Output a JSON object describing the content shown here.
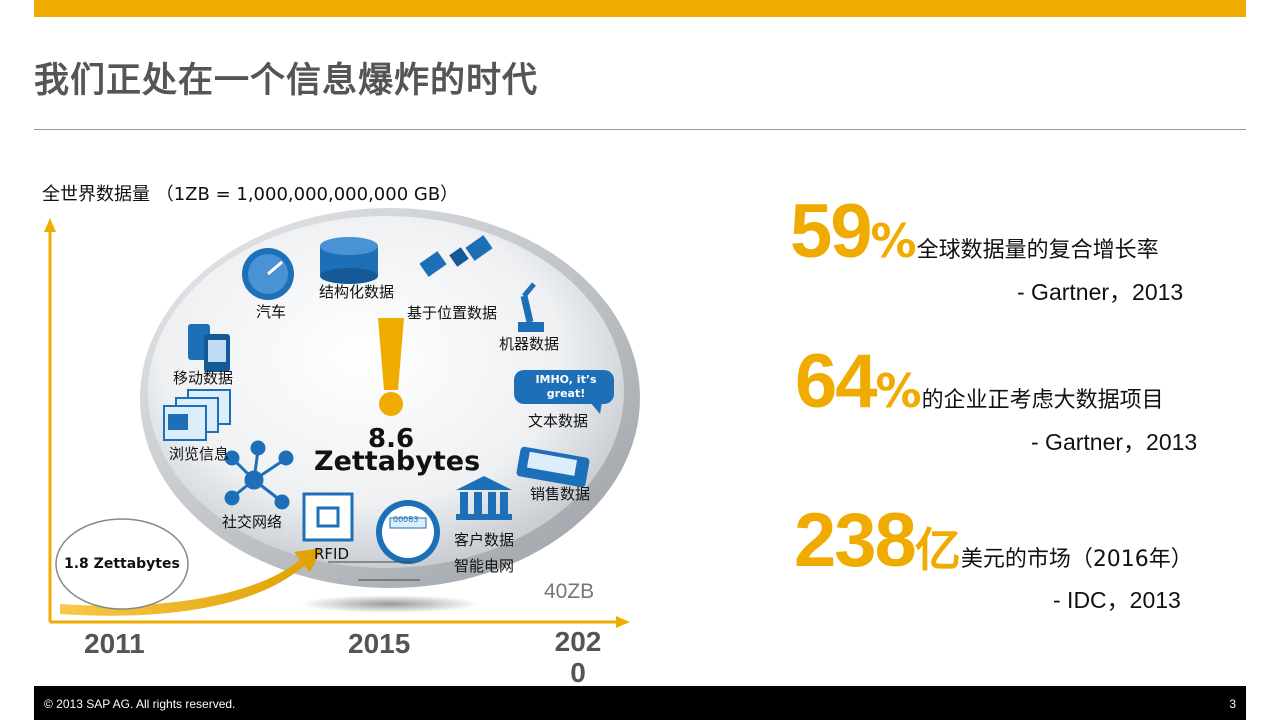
{
  "title": "我们正处在一个信息爆炸的时代",
  "chart": {
    "ylabel": "全世界数据量 （1ZB = 1,000,000,000,000 GB）",
    "years": [
      "2011",
      "2015",
      "202\n0"
    ],
    "bubble_2011": "1.8 Zettabytes",
    "center_value": "8.6",
    "center_unit": "Zettabytes",
    "value_2020": "40ZB",
    "speech": "IMHO, it’s great!",
    "sources": {
      "car": "汽车",
      "structured": "结构化数据",
      "location": "基于位置数据",
      "machine": "机器数据",
      "mobile": "移动数据",
      "text": "文本数据",
      "browsing": "浏览信息",
      "sales": "销售数据",
      "social": "社交网络",
      "customer": "客户数据",
      "rfid": "RFID",
      "grid": "智能电网",
      "meter": "00083"
    }
  },
  "stats": [
    {
      "value": "59",
      "unit": "%",
      "desc": "全球数据量的复合增长率",
      "source": "- Gartner，2013"
    },
    {
      "value": "64",
      "unit": "%",
      "desc": "的企业正考虑大数据项目",
      "source": "- Gartner，2013"
    },
    {
      "value": "238",
      "unit": "亿",
      "desc": "美元的市场（2016年）",
      "source": "- IDC，2013"
    }
  ],
  "footer": {
    "copyright": "© 2013 SAP AG. All rights reserved.",
    "page": "3"
  },
  "colors": {
    "accent": "#f0ab00",
    "title": "#555555",
    "footer": "#000000",
    "icon_blue": "#1d6fb8"
  }
}
